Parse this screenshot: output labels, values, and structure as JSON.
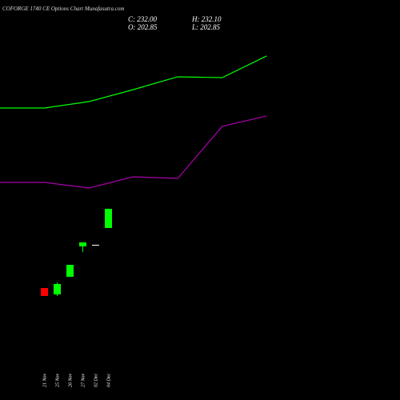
{
  "chart_data": [
    {
      "type": "candlestick",
      "title": "COFORGE 1740 CE Options Chart Munafasutra.com",
      "ohlc_labels": [
        "C: 232.00",
        "H: 232.10",
        "O: 202.85",
        "L: 202.85"
      ],
      "categories": [
        "21 Nov",
        "25 Nov",
        "26 Nov",
        "27 Nov",
        "02 Dec",
        "04 Dec"
      ],
      "open": [
        111.7,
        102.0,
        128.7,
        174.9,
        177.3,
        202.85
      ],
      "high": [
        111.7,
        120.2,
        146.9,
        181.0,
        177.3,
        232.1
      ],
      "low": [
        99.6,
        99.6,
        128.7,
        166.4,
        177.3,
        202.85
      ],
      "close": [
        99.6,
        117.8,
        146.9,
        181.0,
        177.3,
        232.0
      ],
      "up_color": "#00ff00",
      "down_color": "#ff0000",
      "flat_color": "#ffffff",
      "ylim": [
        -58.4,
        549.1
      ]
    },
    {
      "type": "line",
      "x": [
        0,
        1,
        2,
        3,
        4,
        5,
        6
      ],
      "xlim": [
        0,
        9
      ],
      "ylim": [
        -58.4,
        549.1
      ],
      "series": [
        {
          "color": "#00ff00",
          "values": [
            385.1,
            385.1,
            394.8,
            413.0,
            432.5,
            431.2,
            464.1
          ]
        },
        {
          "color": "#aa00aa",
          "values": [
            272.1,
            272.1,
            263.6,
            280.6,
            278.2,
            357.2,
            373.0
          ]
        }
      ]
    }
  ]
}
